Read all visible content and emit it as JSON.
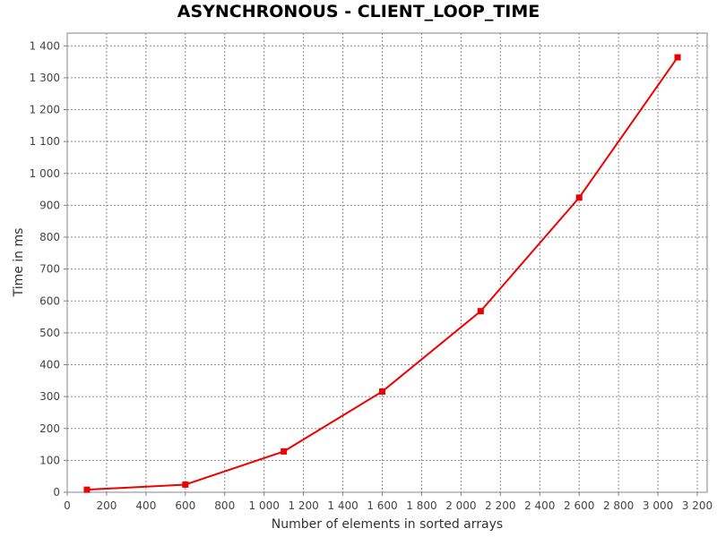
{
  "chart_data": {
    "type": "line",
    "title": "ASYNCHRONOUS - CLIENT_LOOP_TIME",
    "xlabel": "Number of elements in sorted arrays",
    "ylabel": "Time in ms",
    "xlim": [
      0,
      3250
    ],
    "ylim": [
      0,
      1440
    ],
    "x_ticks": [
      0,
      200,
      400,
      600,
      800,
      1000,
      1200,
      1400,
      1600,
      1800,
      2000,
      2200,
      2400,
      2600,
      2800,
      3000,
      3200
    ],
    "x_tick_labels": [
      "0",
      "200",
      "400",
      "600",
      "800",
      "1 000",
      "1 200",
      "1 400",
      "1 600",
      "1 800",
      "2 000",
      "2 200",
      "2 400",
      "2 600",
      "2 800",
      "3 000",
      "3 200"
    ],
    "y_ticks": [
      0,
      100,
      200,
      300,
      400,
      500,
      600,
      700,
      800,
      900,
      1000,
      1100,
      1200,
      1300,
      1400
    ],
    "y_tick_labels": [
      "0",
      "100",
      "200",
      "300",
      "400",
      "500",
      "600",
      "700",
      "800",
      "900",
      "1 000",
      "1 100",
      "1 200",
      "1 300",
      "1 400"
    ],
    "grid": true,
    "series": [
      {
        "color": "#ee0000",
        "x": [
          100,
          600,
          1100,
          1600,
          2100,
          2600,
          3100
        ],
        "y": [
          8,
          24,
          128,
          316,
          568,
          924,
          1364
        ]
      }
    ]
  }
}
